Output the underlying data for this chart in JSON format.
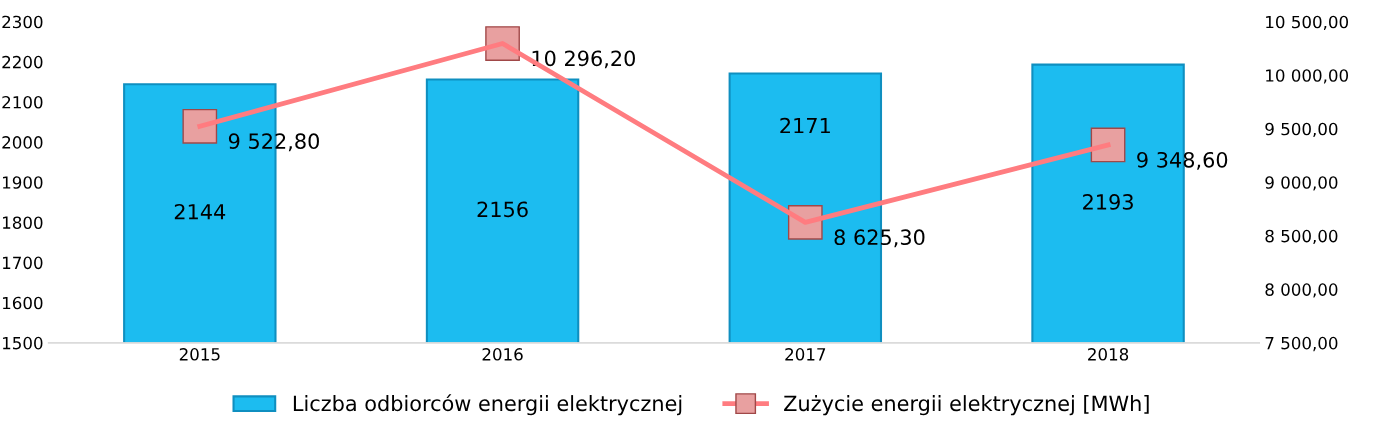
{
  "chart_data": {
    "type": "bar",
    "categories": [
      "2015",
      "2016",
      "2017",
      "2018"
    ],
    "series": [
      {
        "name": "Liczba odbiorców energii elektrycznej",
        "color": "#1cbcf0",
        "values": [
          2144,
          2156,
          2171,
          2193
        ],
        "value_labels": [
          "2144",
          "2156",
          "2171",
          "2193"
        ]
      },
      {
        "name": "Zużycie energii elektrycznej [MWh]",
        "type": "line",
        "axis": "y2",
        "color": "#ff7c80",
        "values": [
          9522.8,
          10296.2,
          8625.3,
          9348.6
        ],
        "value_labels": [
          "9 522,80",
          "10 296,20",
          "8 625,30",
          "9 348,60"
        ]
      }
    ],
    "ylim": [
      1500,
      2300
    ],
    "yticks": [
      1500,
      1600,
      1700,
      1800,
      1900,
      2000,
      2100,
      2200,
      2300
    ],
    "y2lim": [
      7500,
      10500
    ],
    "y2ticks": [
      {
        "value": 7500,
        "label": "7 500,00"
      },
      {
        "value": 8000,
        "label": "8 000,00"
      },
      {
        "value": 8500,
        "label": "8 500,00"
      },
      {
        "value": 9000,
        "label": "9 000,00"
      },
      {
        "value": 9500,
        "label": "9 500,00"
      },
      {
        "value": 10000,
        "label": "10 000,00"
      },
      {
        "value": 10500,
        "label": "10 500,00"
      }
    ],
    "marker": "square",
    "line_style": "solid",
    "grid": false,
    "legend": "bottom"
  }
}
